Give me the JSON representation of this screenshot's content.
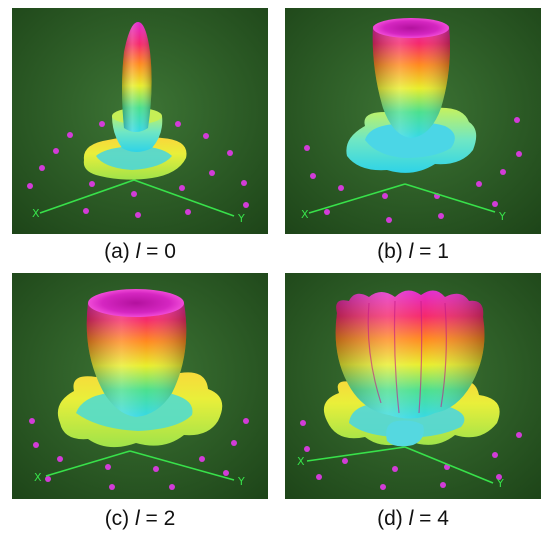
{
  "panels": [
    {
      "id": "a",
      "prefix": "(a) ",
      "var": "l",
      "suffix": " = 0",
      "axis_x": "X",
      "axis_y": "Y"
    },
    {
      "id": "b",
      "prefix": "(b) ",
      "var": "l",
      "suffix": " = 1",
      "axis_x": "X",
      "axis_y": "Y"
    },
    {
      "id": "c",
      "prefix": "(c) ",
      "var": "l",
      "suffix": " = 2",
      "axis_x": "X",
      "axis_y": "Y"
    },
    {
      "id": "d",
      "prefix": "(d) ",
      "var": "l",
      "suffix": " = 4",
      "axis_x": "X",
      "axis_y": "Y"
    }
  ],
  "colors": {
    "ground": "#2b5a25",
    "marker": "#d23cd8",
    "axis": "#38e14a"
  }
}
